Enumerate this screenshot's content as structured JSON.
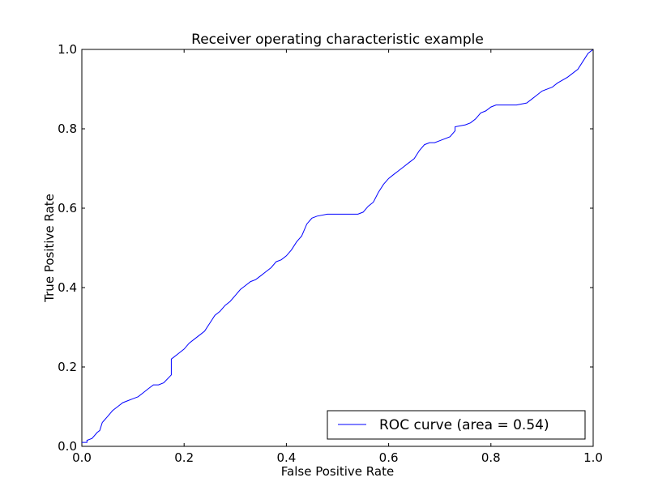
{
  "chart_data": {
    "type": "line",
    "title": "Receiver operating characteristic example",
    "xlabel": "False Positive Rate",
    "ylabel": "True Positive Rate",
    "xlim": [
      0.0,
      1.0
    ],
    "ylim": [
      0.0,
      1.0
    ],
    "xticks": [
      "0.0",
      "0.2",
      "0.4",
      "0.6",
      "0.8",
      "1.0"
    ],
    "yticks": [
      "0.0",
      "0.2",
      "0.4",
      "0.6",
      "0.8",
      "1.0"
    ],
    "grid": false,
    "legend": {
      "position": "lower right",
      "entries": [
        "ROC curve (area = 0.54)"
      ]
    },
    "series": [
      {
        "name": "ROC curve (area = 0.54)",
        "color": "#0000ff",
        "x": [
          0.0,
          0.01,
          0.01,
          0.02,
          0.02,
          0.03,
          0.035,
          0.04,
          0.05,
          0.06,
          0.07,
          0.08,
          0.09,
          0.1,
          0.11,
          0.12,
          0.13,
          0.14,
          0.15,
          0.16,
          0.175,
          0.175,
          0.18,
          0.19,
          0.2,
          0.21,
          0.22,
          0.23,
          0.24,
          0.25,
          0.26,
          0.27,
          0.28,
          0.29,
          0.3,
          0.31,
          0.32,
          0.33,
          0.34,
          0.35,
          0.36,
          0.37,
          0.38,
          0.39,
          0.4,
          0.41,
          0.42,
          0.43,
          0.44,
          0.45,
          0.46,
          0.48,
          0.5,
          0.52,
          0.54,
          0.55,
          0.56,
          0.57,
          0.58,
          0.59,
          0.6,
          0.61,
          0.62,
          0.63,
          0.64,
          0.65,
          0.66,
          0.67,
          0.68,
          0.69,
          0.7,
          0.72,
          0.73,
          0.73,
          0.75,
          0.76,
          0.77,
          0.78,
          0.79,
          0.8,
          0.81,
          0.82,
          0.83,
          0.85,
          0.87,
          0.88,
          0.89,
          0.9,
          0.92,
          0.93,
          0.95,
          0.97,
          0.98,
          0.99,
          1.0
        ],
        "y": [
          0.01,
          0.01,
          0.015,
          0.02,
          0.02,
          0.035,
          0.04,
          0.06,
          0.075,
          0.09,
          0.1,
          0.11,
          0.115,
          0.12,
          0.125,
          0.135,
          0.145,
          0.155,
          0.155,
          0.16,
          0.18,
          0.22,
          0.225,
          0.235,
          0.245,
          0.26,
          0.27,
          0.28,
          0.29,
          0.31,
          0.33,
          0.34,
          0.355,
          0.365,
          0.38,
          0.395,
          0.405,
          0.415,
          0.42,
          0.43,
          0.44,
          0.45,
          0.465,
          0.47,
          0.48,
          0.495,
          0.515,
          0.53,
          0.56,
          0.575,
          0.58,
          0.585,
          0.585,
          0.585,
          0.585,
          0.59,
          0.605,
          0.615,
          0.64,
          0.66,
          0.675,
          0.685,
          0.695,
          0.705,
          0.715,
          0.725,
          0.745,
          0.76,
          0.765,
          0.765,
          0.77,
          0.78,
          0.795,
          0.805,
          0.81,
          0.815,
          0.825,
          0.84,
          0.845,
          0.855,
          0.86,
          0.86,
          0.86,
          0.86,
          0.865,
          0.875,
          0.885,
          0.895,
          0.905,
          0.915,
          0.93,
          0.95,
          0.97,
          0.99,
          1.0
        ]
      }
    ]
  }
}
